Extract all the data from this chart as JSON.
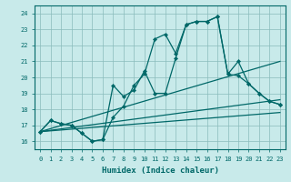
{
  "title": "",
  "xlabel": "Humidex (Indice chaleur)",
  "ylabel": "",
  "xlim": [
    -0.5,
    23.5
  ],
  "ylim": [
    15.5,
    24.5
  ],
  "yticks": [
    16,
    17,
    18,
    19,
    20,
    21,
    22,
    23,
    24
  ],
  "xticks": [
    0,
    1,
    2,
    3,
    4,
    5,
    6,
    7,
    8,
    9,
    10,
    11,
    12,
    13,
    14,
    15,
    16,
    17,
    18,
    19,
    20,
    21,
    22,
    23
  ],
  "background_color": "#c8eaea",
  "grid_color": "#8abcbc",
  "line_color": "#006868",
  "line1_x": [
    0,
    1,
    2,
    3,
    4,
    5,
    6,
    7,
    8,
    9,
    10,
    11,
    12,
    13,
    14,
    15,
    16,
    17,
    18,
    19,
    20,
    21,
    22,
    23
  ],
  "line1_y": [
    16.6,
    17.3,
    17.1,
    17.0,
    16.5,
    16.0,
    16.1,
    17.5,
    18.2,
    19.5,
    20.2,
    22.4,
    22.7,
    21.5,
    23.3,
    23.5,
    23.5,
    23.8,
    20.2,
    20.1,
    19.6,
    19.0,
    18.5,
    18.3
  ],
  "line2_x": [
    0,
    1,
    2,
    3,
    4,
    5,
    6,
    7,
    8,
    9,
    10,
    11,
    12,
    13,
    14,
    15,
    16,
    17,
    18,
    19,
    20,
    21,
    22,
    23
  ],
  "line2_y": [
    16.6,
    17.3,
    17.1,
    17.0,
    16.5,
    16.0,
    16.1,
    19.5,
    18.8,
    19.2,
    20.4,
    19.0,
    19.0,
    21.2,
    23.3,
    23.5,
    23.5,
    23.8,
    20.2,
    21.0,
    19.6,
    19.0,
    18.5,
    18.3
  ],
  "line3_x": [
    0,
    23
  ],
  "line3_y": [
    16.6,
    17.8
  ],
  "line4_x": [
    0,
    23
  ],
  "line4_y": [
    16.6,
    21.0
  ],
  "line5_x": [
    0,
    23
  ],
  "line5_y": [
    16.6,
    18.6
  ]
}
